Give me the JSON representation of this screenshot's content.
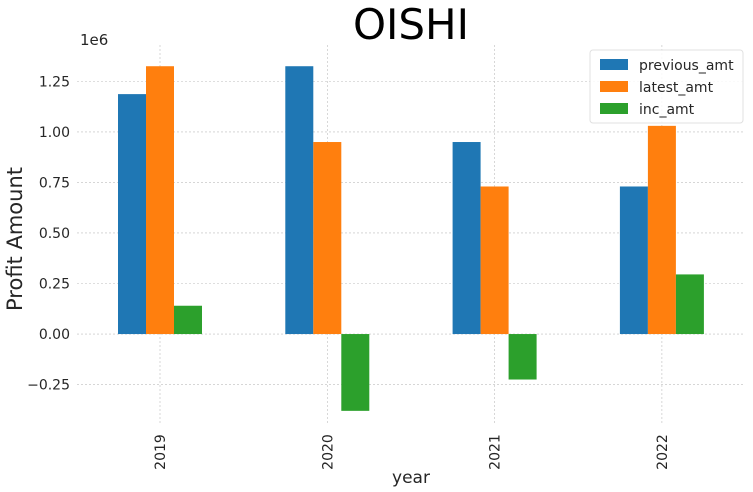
{
  "chart_data": {
    "type": "bar",
    "title": "OISHI",
    "xlabel": "year",
    "ylabel": "Profit Amount",
    "scale_label": "1e6",
    "categories": [
      "2019",
      "2020",
      "2021",
      "2022"
    ],
    "series": [
      {
        "name": "previous_amt",
        "color": "#1f77b4",
        "values": [
          1187000,
          1325000,
          950000,
          730000
        ]
      },
      {
        "name": "latest_amt",
        "color": "#ff7f0e",
        "values": [
          1325000,
          950000,
          730000,
          1030000
        ]
      },
      {
        "name": "inc_amt",
        "color": "#2ca02c",
        "values": [
          140000,
          -380000,
          -225000,
          295000
        ]
      }
    ],
    "yticks": [
      -0.25,
      0.0,
      0.25,
      0.5,
      0.75,
      1.0,
      1.25
    ],
    "ytick_labels": [
      "−0.25",
      "0.00",
      "0.25",
      "0.50",
      "0.75",
      "1.00",
      "1.25"
    ],
    "ylim": [
      -0.45,
      1.43
    ],
    "grid": true,
    "legend_position": "top-right"
  }
}
